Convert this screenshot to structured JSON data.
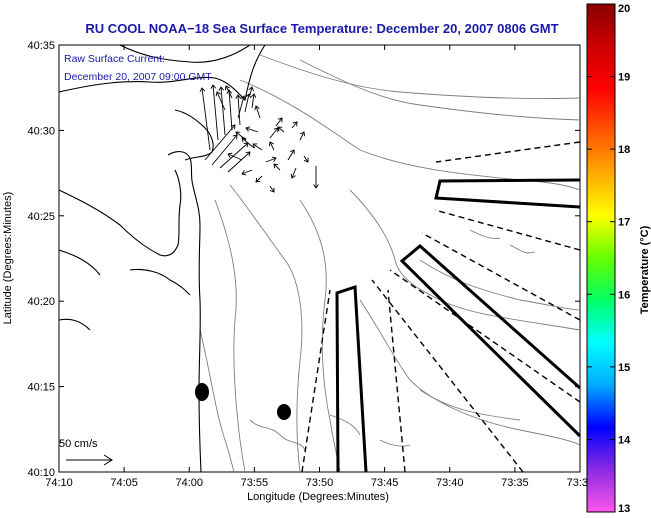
{
  "title": "RU COOL  NOAA−18  Sea Surface Temperature:  December 20, 2007 0806 GMT",
  "annotation": {
    "line1": "Raw Surface Current:",
    "line2": "December 20, 2007 09:00 GMT"
  },
  "x_axis": {
    "label": "Longitude (Degrees:Minutes)",
    "ticks": [
      "74:10",
      "74:05",
      "74:00",
      "73:55",
      "73:50",
      "73:45",
      "73:40",
      "73:35",
      "73:3"
    ]
  },
  "y_axis": {
    "label": "Latitude (Degrees:Minutes)",
    "ticks": [
      "40:10",
      "40:15",
      "40:20",
      "40:25",
      "40:30",
      "40:35"
    ]
  },
  "colorbar": {
    "label": "Temperature (°C)",
    "ticks": [
      "13",
      "14",
      "15",
      "16",
      "17",
      "18",
      "19",
      "20"
    ],
    "min": 13,
    "max": 20,
    "colors": [
      "#ff55ee",
      "#8a2be2",
      "#0000ff",
      "#00aaff",
      "#00ffff",
      "#00ff66",
      "#66ff00",
      "#ffff00",
      "#ffaa00",
      "#ff5500",
      "#ff0000",
      "#cc0000",
      "#880000"
    ]
  },
  "scale_arrow": {
    "label": "50 cm/s"
  },
  "colors": {
    "title": "#1a1aa8",
    "coast": "#000000",
    "bathymetry": "#808080",
    "box_outline": "#000000"
  }
}
